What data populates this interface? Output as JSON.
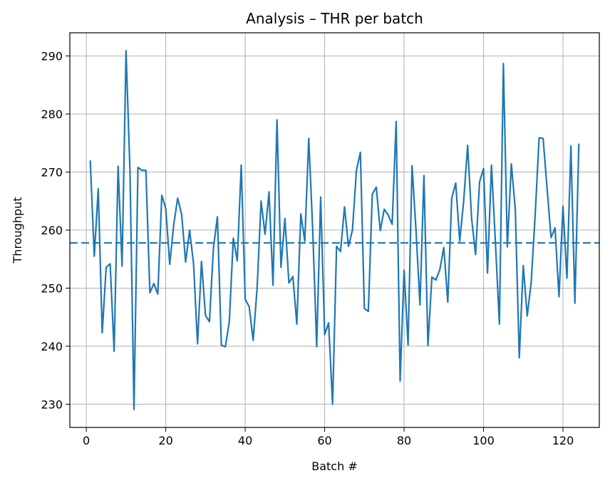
{
  "chart_data": {
    "type": "line",
    "title": "Analysis – THR per batch",
    "xlabel": "Batch #",
    "ylabel": "Throughput",
    "xlim": [
      -4.15,
      129.15
    ],
    "ylim": [
      226.0,
      294.0
    ],
    "xticks": [
      0,
      20,
      40,
      60,
      80,
      100,
      120
    ],
    "yticks": [
      230,
      240,
      250,
      260,
      270,
      280,
      290
    ],
    "grid": true,
    "line_color": "#1f77b4",
    "reference_line": {
      "y": 257.8,
      "style": "dashed"
    },
    "series": [
      {
        "x": [
          1,
          2,
          3,
          4,
          5,
          6,
          7,
          8,
          9,
          10,
          11,
          12,
          13,
          14,
          15,
          16,
          17,
          18,
          19,
          20,
          21,
          22,
          23,
          24,
          25,
          26,
          27,
          28,
          29,
          30,
          31,
          32,
          33,
          34,
          35,
          36,
          37,
          38,
          39,
          40,
          41,
          42,
          43,
          44,
          45,
          46,
          47,
          48,
          49,
          50,
          51,
          52,
          53,
          54,
          55,
          56,
          57,
          58,
          59,
          60,
          61,
          62,
          63,
          64,
          65,
          66,
          67,
          68,
          69,
          70,
          71,
          72,
          73,
          74,
          75,
          76,
          77,
          78,
          79,
          80,
          81,
          82,
          83,
          84,
          85,
          86,
          87,
          88,
          89,
          90,
          91,
          92,
          93,
          94,
          95,
          96,
          97,
          98,
          99,
          100,
          101,
          102,
          103,
          104,
          105,
          106,
          107,
          108,
          109,
          110,
          111,
          112,
          113,
          114,
          115,
          116,
          117,
          118,
          119,
          120,
          121,
          122,
          123,
          124
        ],
        "values": [
          271.9,
          255.5,
          267.1,
          242.3,
          253.6,
          254.2,
          239.1,
          271.0,
          253.8,
          290.9,
          270.0,
          229.1,
          270.8,
          270.3,
          270.3,
          249.2,
          250.8,
          249.0,
          266.0,
          263.7,
          254.1,
          260.9,
          265.5,
          262.7,
          254.5,
          260.0,
          254.2,
          240.4,
          254.6,
          245.3,
          244.2,
          256.9,
          262.3,
          240.2,
          239.9,
          244.2,
          258.6,
          254.7,
          271.2,
          248.1,
          246.8,
          241.0,
          250.0,
          265.0,
          259.3,
          266.6,
          250.5,
          279.0,
          253.6,
          262.0,
          250.9,
          252.0,
          243.8,
          262.8,
          258.1,
          275.8,
          260.0,
          239.9,
          265.7,
          242.0,
          244.0,
          230.0,
          257.2,
          256.3,
          264.0,
          257.2,
          260.0,
          270.3,
          273.4,
          246.5,
          246.0,
          266.2,
          267.4,
          259.9,
          263.6,
          262.6,
          261.0,
          278.7,
          234.0,
          253.1,
          240.2,
          271.1,
          260.0,
          247.1,
          269.4,
          240.1,
          251.9,
          251.4,
          253.2,
          257.0,
          247.6,
          265.5,
          268.1,
          258.1,
          265.0,
          274.6,
          262.0,
          255.8,
          268.3,
          270.6,
          252.6,
          271.2,
          257.8,
          243.8,
          288.7,
          257.1,
          271.4,
          263.6,
          238.0,
          253.9,
          245.2,
          251.0,
          262.6,
          275.9,
          275.8,
          267.2,
          258.7,
          260.4,
          248.5,
          264.1,
          251.7,
          274.5,
          247.4,
          274.8
        ]
      }
    ]
  }
}
